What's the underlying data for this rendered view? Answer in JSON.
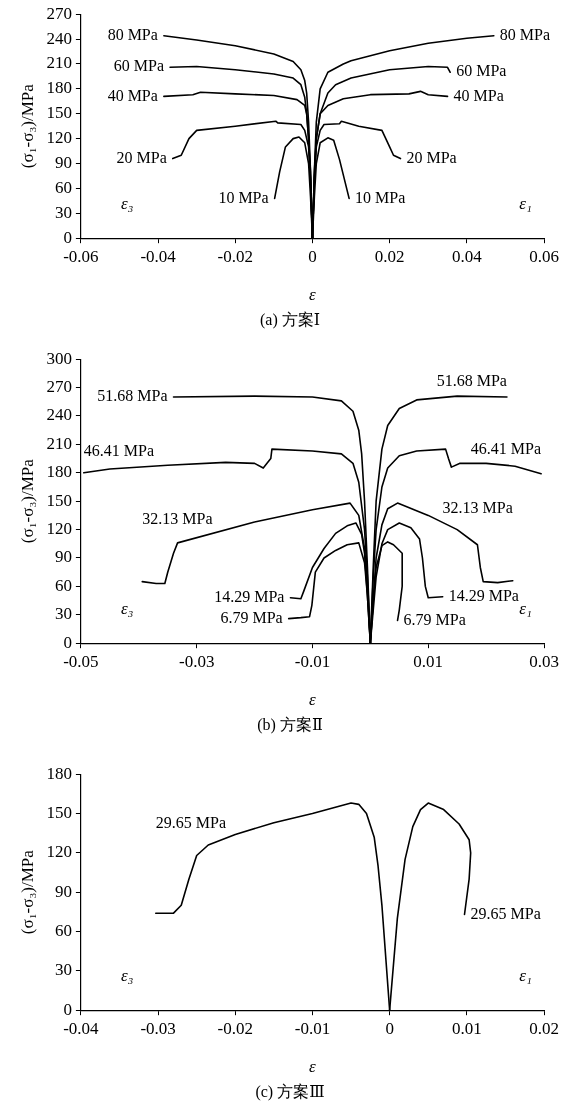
{
  "chart_data": [
    {
      "type": "line",
      "title": "(a) 方案Ⅰ",
      "xlabel": "ε",
      "ylabel": "(σ₁-σ₃)/MPa",
      "xlim": [
        -0.06,
        0.06
      ],
      "xticks": [
        -0.06,
        -0.04,
        -0.02,
        0,
        0.02,
        0.04,
        0.06
      ],
      "ylim": [
        0,
        270
      ],
      "yticks": [
        0,
        30,
        60,
        90,
        120,
        150,
        180,
        210,
        240,
        270
      ],
      "grid": false,
      "marker": "none",
      "line_style": "solid",
      "series": [
        {
          "name": "80 MPa",
          "color": "#000000",
          "x": [
            0,
            -0.0005,
            -0.001,
            -0.0015,
            -0.002,
            -0.003,
            -0.005,
            -0.01,
            -0.02,
            -0.03,
            -0.0385
          ],
          "values": [
            0,
            80,
            140,
            175,
            190,
            203,
            213,
            222,
            232,
            239,
            244
          ]
        },
        {
          "name": "80 MPa",
          "color": "#000000",
          "x": [
            0,
            0.0005,
            0.001,
            0.002,
            0.004,
            0.008,
            0.01,
            0.02,
            0.03,
            0.04,
            0.047
          ],
          "values": [
            0,
            80,
            140,
            180,
            200,
            210,
            214,
            226,
            235,
            241,
            244
          ]
        },
        {
          "name": "60 MPa",
          "color": "#000000",
          "x": [
            0,
            -0.0005,
            -0.001,
            -0.0015,
            -0.002,
            -0.003,
            -0.005,
            -0.01,
            -0.02,
            -0.03,
            -0.0369
          ],
          "values": [
            0,
            70,
            120,
            150,
            170,
            185,
            193,
            198,
            203,
            207,
            206
          ]
        },
        {
          "name": "60 MPa",
          "color": "#000000",
          "x": [
            0,
            0.0005,
            0.001,
            0.002,
            0.004,
            0.006,
            0.01,
            0.02,
            0.03,
            0.035,
            0.0357
          ],
          "values": [
            0,
            70,
            120,
            150,
            175,
            185,
            193,
            203,
            207,
            206,
            200
          ]
        },
        {
          "name": "40 MPa",
          "color": "#000000",
          "x": [
            0,
            -0.0005,
            -0.001,
            -0.0015,
            -0.002,
            -0.004,
            -0.01,
            -0.02,
            -0.029,
            -0.031,
            -0.0385
          ],
          "values": [
            0,
            80,
            120,
            150,
            160,
            167,
            172,
            174,
            176,
            173,
            171
          ]
        },
        {
          "name": "40 MPa",
          "color": "#000000",
          "x": [
            0,
            0.0005,
            0.001,
            0.002,
            0.004,
            0.008,
            0.015,
            0.025,
            0.028,
            0.03,
            0.035
          ],
          "values": [
            0,
            80,
            120,
            150,
            160,
            168,
            173,
            174,
            177,
            173,
            171
          ]
        },
        {
          "name": "20 MPa",
          "color": "#000000",
          "x": [
            0,
            -0.0005,
            -0.001,
            -0.002,
            -0.003,
            -0.009,
            -0.0095,
            -0.02,
            -0.03,
            -0.032,
            -0.034,
            -0.0362
          ],
          "values": [
            0,
            70,
            110,
            130,
            137,
            139,
            141,
            135,
            130,
            120,
            100,
            96
          ]
        },
        {
          "name": "20 MPa",
          "color": "#000000",
          "x": [
            0,
            0.0005,
            0.001,
            0.002,
            0.003,
            0.007,
            0.0075,
            0.012,
            0.018,
            0.02,
            0.021,
            0.0228
          ],
          "values": [
            0,
            70,
            110,
            130,
            137,
            138,
            141,
            135,
            130,
            110,
            100,
            96
          ]
        },
        {
          "name": "10 MPa",
          "color": "#000000",
          "x": [
            0,
            -0.0005,
            -0.001,
            -0.002,
            -0.0035,
            -0.005,
            -0.007,
            -0.0085,
            -0.0098
          ],
          "values": [
            0,
            50,
            90,
            115,
            122,
            120,
            110,
            80,
            48
          ]
        },
        {
          "name": "10 MPa",
          "color": "#000000",
          "x": [
            0,
            0.0005,
            0.001,
            0.002,
            0.004,
            0.0055,
            0.007,
            0.0095
          ],
          "values": [
            0,
            50,
            90,
            115,
            121,
            118,
            95,
            48
          ]
        }
      ],
      "annotations": [
        "ε₃",
        "ε₁"
      ]
    },
    {
      "type": "line",
      "title": "(b) 方案Ⅱ",
      "xlabel": "ε",
      "ylabel": "(σ₁-σ₃)/MPa",
      "xlim": [
        -0.05,
        0.03
      ],
      "xticks": [
        -0.05,
        -0.03,
        -0.01,
        0.01,
        0.03
      ],
      "ylim": [
        0,
        300
      ],
      "yticks": [
        0,
        30,
        60,
        90,
        120,
        150,
        180,
        210,
        240,
        270,
        300
      ],
      "grid": false,
      "marker": "none",
      "line_style": "solid",
      "series": [
        {
          "name": "51.68 MPa",
          "color": "#000000",
          "x": [
            0,
            -0.0005,
            -0.001,
            -0.0015,
            -0.002,
            -0.003,
            -0.005,
            -0.01,
            -0.02,
            -0.034
          ],
          "values": [
            0,
            80,
            150,
            200,
            225,
            245,
            256,
            260,
            261,
            260
          ]
        },
        {
          "name": "51.68 MPa",
          "color": "#000000",
          "x": [
            0,
            0.0005,
            0.001,
            0.002,
            0.003,
            0.005,
            0.008,
            0.015,
            0.0236
          ],
          "values": [
            0,
            80,
            150,
            205,
            230,
            248,
            257,
            261,
            260
          ]
        },
        {
          "name": "46.41 MPa",
          "color": "#000000",
          "x": [
            0,
            -0.0005,
            -0.001,
            -0.002,
            -0.003,
            -0.005,
            -0.01,
            -0.017,
            -0.0172,
            -0.0185,
            -0.02,
            -0.025,
            -0.035,
            -0.045,
            -0.0495
          ],
          "values": [
            0,
            70,
            120,
            170,
            190,
            200,
            203,
            205,
            195,
            185,
            190,
            191,
            188,
            184,
            180
          ]
        },
        {
          "name": "46.41 MPa",
          "color": "#000000",
          "x": [
            0,
            0.0005,
            0.001,
            0.002,
            0.003,
            0.005,
            0.008,
            0.013,
            0.0135,
            0.014,
            0.0155,
            0.02,
            0.025,
            0.0295
          ],
          "values": [
            0,
            70,
            120,
            165,
            185,
            198,
            203,
            205,
            195,
            186,
            190,
            190,
            187,
            179
          ]
        },
        {
          "name": "32.13 MPa",
          "color": "#000000",
          "x": [
            0,
            -0.0005,
            -0.001,
            -0.002,
            -0.0035,
            -0.01,
            -0.02,
            -0.0333,
            -0.034,
            -0.035,
            -0.0355,
            -0.037,
            -0.0394
          ],
          "values": [
            0,
            60,
            100,
            135,
            148,
            141,
            128,
            106,
            95,
            75,
            63,
            63,
            65
          ]
        },
        {
          "name": "32.13 MPa",
          "color": "#000000",
          "x": [
            0,
            0.001,
            0.002,
            0.003,
            0.0047,
            0.01,
            0.015,
            0.0185,
            0.019,
            0.0195,
            0.022,
            0.0246
          ],
          "values": [
            0,
            90,
            125,
            142,
            148,
            135,
            120,
            104,
            80,
            65,
            64,
            66
          ]
        },
        {
          "name": "14.29 MPa",
          "color": "#000000",
          "x": [
            0,
            -0.0005,
            -0.001,
            -0.0015,
            -0.0025,
            -0.004,
            -0.006,
            -0.008,
            -0.01,
            -0.0115,
            -0.012,
            -0.0138
          ],
          "values": [
            0,
            50,
            95,
            115,
            127,
            124,
            116,
            100,
            80,
            55,
            47,
            48
          ]
        },
        {
          "name": "14.29 MPa",
          "color": "#000000",
          "x": [
            0,
            0.001,
            0.002,
            0.003,
            0.005,
            0.007,
            0.0085,
            0.009,
            0.0095,
            0.01,
            0.0125
          ],
          "values": [
            0,
            70,
            105,
            120,
            127,
            122,
            110,
            90,
            60,
            48,
            49
          ]
        },
        {
          "name": "6.79 MPa",
          "color": "#000000",
          "x": [
            0,
            -0.0005,
            -0.001,
            -0.002,
            -0.004,
            -0.006,
            -0.008,
            -0.0095,
            -0.0101,
            -0.0105,
            -0.012,
            -0.0141
          ],
          "values": [
            0,
            50,
            85,
            106,
            104,
            98,
            90,
            75,
            40,
            28,
            27,
            26
          ]
        },
        {
          "name": "6.79 MPa",
          "color": "#000000",
          "x": [
            0,
            0.0005,
            0.001,
            0.002,
            0.003,
            0.004,
            0.0055,
            0.0055,
            0.005,
            0.0047
          ],
          "values": [
            0,
            45,
            80,
            103,
            107,
            104,
            95,
            60,
            35,
            24
          ]
        }
      ],
      "annotations": [
        "ε₃",
        "ε₁"
      ]
    },
    {
      "type": "line",
      "title": "(c) 方案Ⅲ",
      "xlabel": "ε",
      "ylabel": "(σ₁-σ₃)/MPa",
      "xlim": [
        -0.04,
        0.02
      ],
      "xticks": [
        -0.04,
        -0.03,
        -0.02,
        -0.01,
        0,
        0.01,
        0.02
      ],
      "ylim": [
        0,
        180
      ],
      "yticks": [
        0,
        30,
        60,
        90,
        120,
        150,
        180
      ],
      "grid": false,
      "marker": "none",
      "line_style": "solid",
      "series": [
        {
          "name": "29.65 MPa",
          "color": "#000000",
          "x": [
            0,
            -0.0005,
            -0.001,
            -0.0015,
            -0.002,
            -0.003,
            -0.004,
            -0.005,
            -0.01,
            -0.015,
            -0.02,
            -0.0235,
            -0.025,
            -0.026,
            -0.027,
            -0.028,
            -0.0303
          ],
          "values": [
            0,
            40,
            80,
            110,
            132,
            150,
            157,
            158,
            150,
            143,
            134,
            126,
            118,
            100,
            80,
            74,
            74
          ]
        },
        {
          "name": "29.65 MPa",
          "color": "#000000",
          "x": [
            0,
            0.001,
            0.002,
            0.003,
            0.004,
            0.005,
            0.007,
            0.009,
            0.0103,
            0.0105,
            0.0103,
            0.0097
          ],
          "values": [
            0,
            70,
            115,
            140,
            153,
            158,
            153,
            142,
            130,
            120,
            100,
            73
          ]
        }
      ],
      "annotations": [
        "ε₃",
        "ε₁"
      ]
    }
  ]
}
